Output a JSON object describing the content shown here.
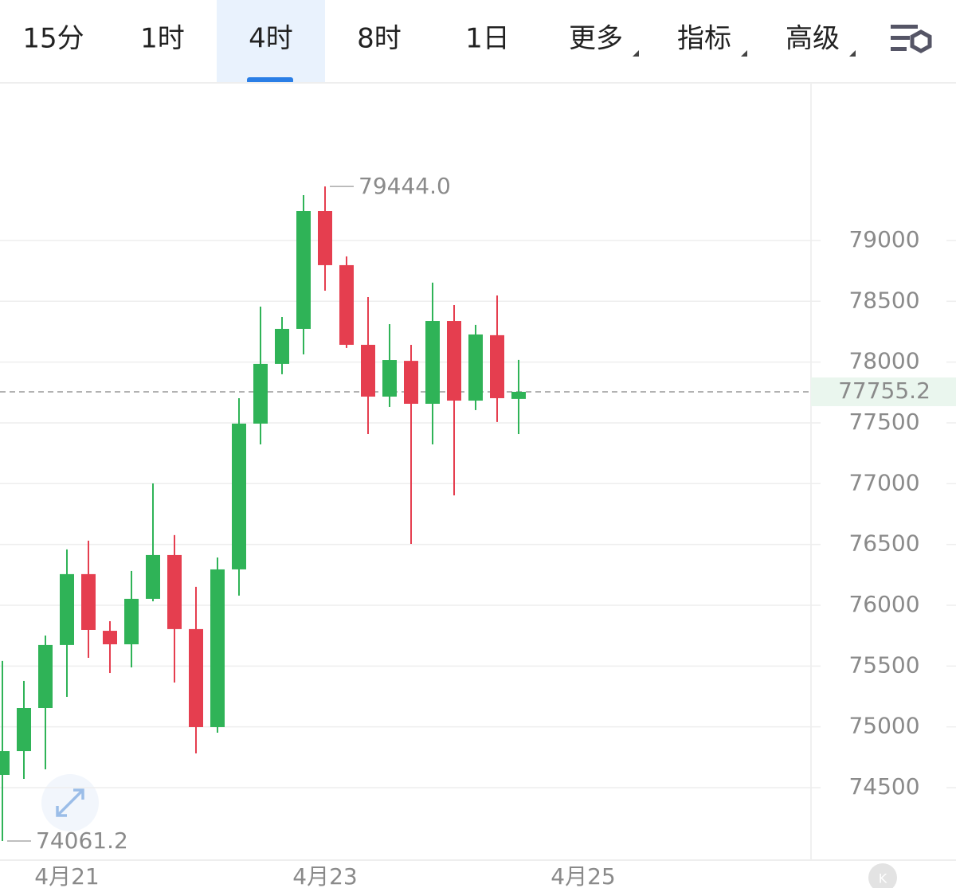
{
  "tabs": {
    "items": [
      "15分",
      "1时",
      "4时",
      "8时",
      "1日",
      "更多",
      "指标",
      "高级"
    ],
    "active": "4时"
  },
  "corner_icon": "K",
  "chart_data": {
    "type": "candlestick",
    "up_color": "#2fb357",
    "down_color": "#e53e4f",
    "open": [
      74605,
      74801,
      75155,
      75673,
      76256,
      75790,
      75679,
      76053,
      76413,
      75804,
      74998,
      76295,
      77494,
      77985,
      78273,
      79242,
      78797,
      78142,
      77716,
      78010,
      77657,
      78338,
      77683,
      78221,
      77697
    ],
    "high": [
      75542,
      75378,
      75751,
      76459,
      76531,
      75869,
      76282,
      77002,
      76577,
      76151,
      76393,
      77703,
      78456,
      78371,
      79373,
      79444,
      78869,
      78535,
      78312,
      78142,
      78653,
      78469,
      78306,
      78548,
      78018
    ],
    "low": [
      74061.2,
      74572,
      74651,
      75247,
      75568,
      75443,
      75489,
      76033,
      75365,
      74782,
      74952,
      76079,
      77323,
      77900,
      78063,
      78587,
      78116,
      77408,
      77631,
      76504,
      77323,
      76904,
      77605,
      77507,
      77408
    ],
    "close": [
      74801,
      75155,
      75673,
      76256,
      75797,
      75679,
      76053,
      76413,
      75804,
      74998,
      76295,
      77494,
      77985,
      78273,
      79242,
      78797,
      78142,
      77716,
      78017,
      77657,
      78338,
      77683,
      78227,
      77703,
      77755.2
    ],
    "xticks": [
      {
        "value": 3,
        "label": "4月21"
      },
      {
        "value": 15,
        "label": "4月23"
      },
      {
        "value": 27,
        "label": "4月25"
      }
    ],
    "ylim": [
      73904,
      80290
    ],
    "yticks": [
      74500,
      75000,
      75500,
      76000,
      76500,
      77000,
      77500,
      78000,
      78500,
      79000
    ],
    "grid": true,
    "max_label": {
      "value": 79444,
      "label": "79444.0"
    },
    "min_label": {
      "value": 74061.2,
      "label": "74061.2"
    },
    "last_price": {
      "value": 77755.2,
      "label": "77755.2",
      "color": "#2fb357"
    }
  }
}
